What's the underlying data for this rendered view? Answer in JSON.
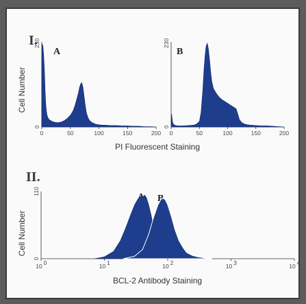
{
  "chart_data": [
    {
      "type": "area",
      "panel": "I.",
      "label": "A",
      "xlabel": "PI Fluorescent Staining",
      "ylabel": "Cell Number",
      "xlim": [
        0,
        200
      ],
      "ylim": [
        0,
        230
      ],
      "xticks": [
        "0",
        "50",
        "100",
        "150",
        "200"
      ],
      "yticks": [
        "0",
        "230"
      ],
      "x": [
        0,
        1,
        2,
        3,
        4,
        5,
        6,
        7,
        8,
        9,
        10,
        12,
        15,
        20,
        25,
        30,
        35,
        40,
        45,
        50,
        55,
        58,
        61,
        64,
        66,
        68,
        70,
        72,
        74,
        76,
        78,
        81,
        84,
        88,
        92,
        96,
        100,
        105,
        110,
        120,
        130,
        140,
        150,
        160,
        170,
        180,
        190,
        200
      ],
      "values": [
        180,
        228,
        222,
        205,
        180,
        140,
        95,
        65,
        45,
        35,
        28,
        22,
        18,
        14,
        12,
        12,
        14,
        18,
        24,
        32,
        45,
        58,
        75,
        92,
        108,
        118,
        122,
        110,
        85,
        60,
        40,
        25,
        17,
        12,
        9,
        7,
        6,
        5,
        5,
        4,
        4,
        3,
        3,
        2,
        2,
        1,
        1,
        0
      ]
    },
    {
      "type": "area",
      "label": "B",
      "xlim": [
        0,
        200
      ],
      "ylim": [
        0,
        230
      ],
      "xticks": [
        "0",
        "50",
        "100",
        "150",
        "200"
      ],
      "yticks": [
        "0",
        "230"
      ],
      "x": [
        0,
        1,
        2,
        3,
        5,
        8,
        12,
        20,
        30,
        40,
        45,
        50,
        53,
        56,
        58,
        60,
        62,
        64,
        66,
        68,
        70,
        72,
        75,
        80,
        85,
        90,
        95,
        100,
        105,
        110,
        115,
        118,
        121,
        125,
        130,
        135,
        140,
        150,
        160,
        170,
        180,
        190,
        200
      ],
      "values": [
        10,
        35,
        18,
        10,
        6,
        4,
        3,
        3,
        4,
        5,
        8,
        15,
        40,
        100,
        155,
        195,
        222,
        230,
        215,
        185,
        150,
        125,
        105,
        92,
        82,
        75,
        70,
        65,
        60,
        55,
        50,
        35,
        20,
        12,
        8,
        6,
        5,
        4,
        3,
        3,
        2,
        1,
        0
      ]
    },
    {
      "type": "area",
      "panel": "II.",
      "xlabel": "BCL-2 Antibody Staining",
      "ylabel": "Cell Number",
      "log_x": true,
      "xlim": [
        1,
        10000
      ],
      "ylim": [
        0,
        110
      ],
      "xtick_labels": [
        "10",
        "10",
        "10",
        "10",
        "10"
      ],
      "xtick_exponents": [
        "0",
        "1",
        "2",
        "3",
        "4"
      ],
      "yticks": [
        "0",
        "110"
      ],
      "series": [
        {
          "name": "A",
          "x": [
            7,
            10,
            14,
            18,
            22,
            26,
            30,
            34,
            37,
            40,
            43,
            46,
            50,
            55,
            60,
            66,
            72,
            80,
            90,
            100
          ],
          "values": [
            0,
            3,
            12,
            30,
            52,
            72,
            88,
            98,
            102,
            100,
            104,
            100,
            88,
            70,
            48,
            30,
            15,
            7,
            2,
            0
          ]
        },
        {
          "name": "B",
          "x": [
            20,
            30,
            40,
            50,
            60,
            70,
            78,
            85,
            92,
            100,
            115,
            130,
            150,
            175,
            200,
            250,
            300,
            400,
            500
          ],
          "values": [
            0,
            4,
            15,
            40,
            68,
            88,
            97,
            99,
            96,
            88,
            68,
            48,
            30,
            18,
            10,
            5,
            3,
            1,
            0
          ]
        }
      ]
    }
  ]
}
